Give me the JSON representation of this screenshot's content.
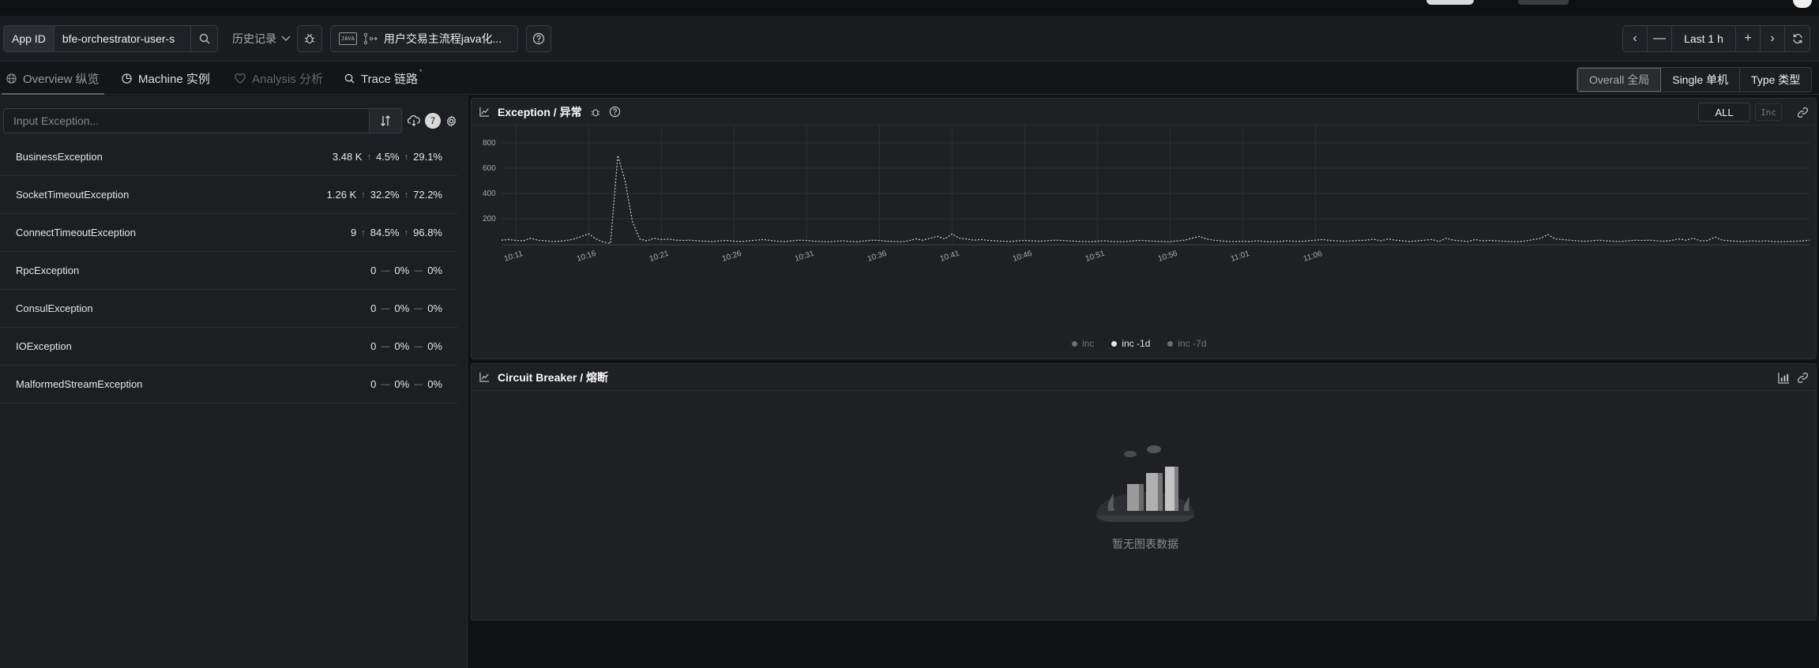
{
  "toolbar": {
    "appid_label": "App ID",
    "appid_value": "bfe-orchestrator-user-s",
    "history_label": "历史记录",
    "java_project": "用户交易主流程java化...",
    "java_badge": "JAVA",
    "time_range": "Last 1 h"
  },
  "tabs": [
    {
      "label": "Overview 纵览"
    },
    {
      "label": "Machine 实例"
    },
    {
      "label": "Analysis 分析"
    },
    {
      "label": "Trace 链路",
      "mark": "*"
    }
  ],
  "view_modes": [
    "Overall 全局",
    "Single 单机",
    "Type 类型"
  ],
  "exceptions": {
    "placeholder": "Input Exception...",
    "count": "7",
    "rows": [
      {
        "name": "BusinessException",
        "total": "3.48 K",
        "d1": "4.5%",
        "d7": "29.1%"
      },
      {
        "name": "SocketTimeoutException",
        "total": "1.26 K",
        "d1": "32.2%",
        "d7": "72.2%"
      },
      {
        "name": "ConnectTimeoutException",
        "total": "9",
        "d1": "84.5%",
        "d7": "96.8%"
      },
      {
        "name": "RpcException",
        "total": "0",
        "d1": "0%",
        "d7": "0%"
      },
      {
        "name": "ConsulException",
        "total": "0",
        "d1": "0%",
        "d7": "0%"
      },
      {
        "name": "IOException",
        "total": "0",
        "d1": "0%",
        "d7": "0%"
      },
      {
        "name": "MalformedStreamException",
        "total": "0",
        "d1": "0%",
        "d7": "0%"
      }
    ]
  },
  "exception_panel": {
    "title": "Exception / 异常",
    "all_label": "ALL",
    "inc_label": "Inc"
  },
  "breaker_panel": {
    "title": "Circuit Breaker / 熔断",
    "empty_text": "暂无图表数据"
  },
  "colors": {
    "line": "#cfcfcf",
    "grid": "#2e2f33",
    "bg": "#1f2023"
  },
  "chart_data": {
    "type": "line",
    "ylim": [
      0,
      800
    ],
    "yticks": [
      200,
      400,
      600,
      800
    ],
    "xticks": [
      "10:11",
      "10:16",
      "10:21",
      "10:26",
      "10:31",
      "10:36",
      "10:41",
      "10:46",
      "10:51",
      "10:56",
      "11:01",
      "11:06"
    ],
    "legend": [
      {
        "name": "inc",
        "color": "#6e6e6e"
      },
      {
        "name": "inc -1d",
        "color": "#e6e6e6"
      },
      {
        "name": "inc -7d",
        "color": "#6e6e6e"
      }
    ],
    "series": [
      {
        "name": "inc -1d",
        "x_start": "10:10",
        "step_minutes": 0.5,
        "values": [
          30,
          35,
          28,
          25,
          45,
          30,
          25,
          20,
          22,
          28,
          40,
          60,
          80,
          40,
          15,
          5,
          700,
          500,
          180,
          40,
          25,
          45,
          35,
          38,
          30,
          28,
          30,
          25,
          22,
          20,
          25,
          28,
          22,
          20,
          25,
          30,
          35,
          28,
          22,
          20,
          25,
          30,
          28,
          22,
          20,
          18,
          22,
          25,
          20,
          18,
          25,
          30,
          28,
          22,
          20,
          18,
          25,
          40,
          30,
          45,
          60,
          40,
          80,
          45,
          40,
          30,
          35,
          28,
          25,
          22,
          20,
          25,
          28,
          25,
          22,
          25,
          30,
          28,
          25,
          22,
          20,
          18,
          22,
          25,
          20,
          18,
          20,
          25,
          28,
          25,
          22,
          20,
          18,
          25,
          30,
          45,
          60,
          40,
          30,
          25,
          20,
          20,
          22,
          20,
          25,
          20,
          18,
          20,
          25,
          22,
          20,
          25,
          30,
          35,
          28,
          25,
          22,
          25,
          28,
          30,
          38,
          25,
          40,
          30,
          25,
          20,
          25,
          30,
          35,
          20,
          45,
          30,
          25,
          20,
          35,
          25,
          28,
          25,
          22,
          20,
          18,
          25,
          35,
          45,
          75,
          40,
          35,
          30,
          25,
          22,
          25,
          30,
          25,
          22,
          20,
          25,
          30,
          28,
          30,
          25,
          22,
          28,
          40,
          30,
          45,
          25,
          28,
          55,
          30,
          25,
          22,
          20,
          25,
          22,
          25,
          20,
          18,
          20,
          22,
          25,
          30
        ]
      }
    ]
  }
}
